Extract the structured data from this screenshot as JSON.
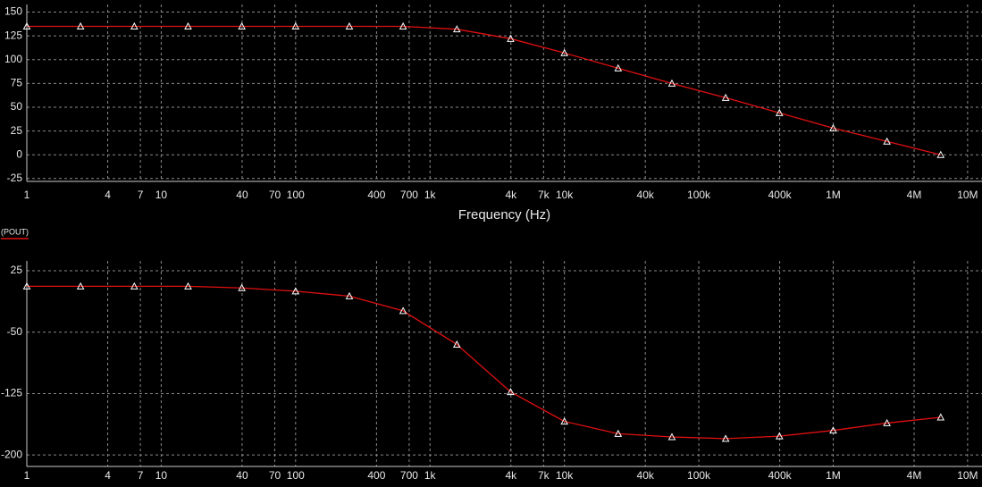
{
  "chart_data": [
    {
      "type": "line",
      "x_label": "Frequency (Hz)",
      "xscale": "log",
      "xlim": [
        1,
        12800000
      ],
      "ylim": [
        -28,
        158
      ],
      "xticks": [
        1,
        4,
        7,
        10,
        40,
        70,
        100,
        400,
        700,
        {
          "value": 1000,
          "label": "1k"
        },
        {
          "value": 4000,
          "label": "4k"
        },
        {
          "value": 7000,
          "label": "7k"
        },
        {
          "value": 10000,
          "label": "10k"
        },
        {
          "value": 40000,
          "label": "40k"
        },
        {
          "value": 100000,
          "label": "100k"
        },
        {
          "value": 400000,
          "label": "400k"
        },
        {
          "value": 1000000,
          "label": "1M"
        },
        {
          "value": 4000000,
          "label": "4M"
        },
        {
          "value": 10000000,
          "label": "10M"
        }
      ],
      "yticks": [
        150,
        125,
        100,
        75,
        50,
        25,
        0,
        -25
      ],
      "grid": true,
      "x": [
        1,
        2.512,
        6.31,
        15.85,
        39.81,
        100,
        251.2,
        631,
        1585,
        3981,
        10000,
        25119,
        63096,
        158489,
        398107,
        1000000,
        2511886,
        6309573
      ],
      "series": [
        {
          "color": "#e01010",
          "values": [
            135,
            135,
            135,
            135,
            135,
            135,
            135,
            135,
            132,
            122,
            107,
            91,
            75,
            60,
            44,
            28,
            14,
            0
          ]
        }
      ]
    },
    {
      "type": "line",
      "xscale": "log",
      "xlim": [
        1,
        12800000
      ],
      "ylim": [
        -214,
        37
      ],
      "xticks": [
        1,
        4,
        7,
        10,
        40,
        70,
        100,
        400,
        700,
        {
          "value": 1000,
          "label": "1k"
        },
        {
          "value": 4000,
          "label": "4k"
        },
        {
          "value": 7000,
          "label": "7k"
        },
        {
          "value": 10000,
          "label": "10k"
        },
        {
          "value": 40000,
          "label": "40k"
        },
        {
          "value": 100000,
          "label": "100k"
        },
        {
          "value": 400000,
          "label": "400k"
        },
        {
          "value": 1000000,
          "label": "1M"
        },
        {
          "value": 4000000,
          "label": "4M"
        },
        {
          "value": 10000000,
          "label": "10M"
        }
      ],
      "yticks": [
        25,
        -50,
        -125,
        -200
      ],
      "grid": true,
      "x": [
        1,
        2.512,
        6.31,
        15.85,
        39.81,
        100,
        251.2,
        631,
        1585,
        3981,
        10000,
        25119,
        63096,
        158489,
        398107,
        1000000,
        2511886,
        6309573
      ],
      "series": [
        {
          "name": "(POUT)",
          "color": "#e01010",
          "values": [
            6,
            6,
            6,
            6,
            4,
            0,
            -6,
            -24,
            -65,
            -123,
            -159,
            -174,
            -178,
            -180,
            -177,
            -170,
            -161,
            -154
          ]
        }
      ]
    }
  ]
}
